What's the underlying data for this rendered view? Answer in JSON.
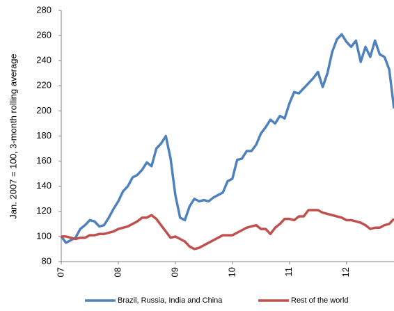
{
  "chart_data": {
    "type": "line",
    "y_label": "Jan. 2007 = 100, 3-month rolling average",
    "categories": [
      "07",
      null,
      null,
      null,
      null,
      null,
      null,
      null,
      null,
      null,
      null,
      null,
      "08",
      null,
      null,
      null,
      null,
      null,
      null,
      null,
      null,
      null,
      null,
      null,
      "09",
      null,
      null,
      null,
      null,
      null,
      null,
      null,
      null,
      null,
      null,
      null,
      "10",
      null,
      null,
      null,
      null,
      null,
      null,
      null,
      null,
      null,
      null,
      null,
      "11",
      null,
      null,
      null,
      null,
      null,
      null,
      null,
      null,
      null,
      null,
      null,
      "12",
      null,
      null,
      null,
      null,
      null,
      null,
      null,
      null,
      null,
      null
    ],
    "series": [
      {
        "name": "Brazil, Russia, India and China",
        "color": "#4f81bd",
        "values": [
          100,
          95,
          97,
          99,
          106,
          109,
          113,
          112,
          108,
          109,
          115,
          122,
          128,
          136,
          140,
          147,
          149,
          153,
          159,
          156,
          170,
          174,
          180,
          162,
          133,
          115,
          113,
          124,
          130,
          128,
          129,
          128,
          131,
          133,
          135,
          144,
          146,
          161,
          162,
          168,
          168,
          173,
          182,
          187,
          193,
          190,
          196,
          194,
          206,
          215,
          214,
          218,
          222,
          226,
          231,
          219,
          230,
          247,
          257,
          261,
          255,
          251,
          256,
          239,
          251,
          243,
          256,
          245,
          243,
          233,
          202
        ]
      },
      {
        "name": "Rest of the world",
        "color": "#c0504d",
        "values": [
          100,
          100,
          99,
          98,
          99,
          99,
          101,
          101,
          102,
          102,
          103,
          104,
          106,
          107,
          108,
          110,
          112,
          115,
          115,
          117,
          114,
          109,
          104,
          99,
          100,
          98,
          96,
          92,
          90,
          91,
          93,
          95,
          97,
          99,
          101,
          101,
          101,
          103,
          105,
          107,
          108,
          109,
          106,
          106,
          102,
          107,
          110,
          114,
          114,
          113,
          116,
          116,
          121,
          121,
          121,
          119,
          118,
          117,
          116,
          115,
          113,
          113,
          112,
          111,
          109,
          106,
          107,
          107,
          109,
          110,
          114
        ]
      }
    ],
    "ylim": [
      80,
      280
    ],
    "yticks": [
      80,
      100,
      120,
      140,
      160,
      180,
      200,
      220,
      240,
      260,
      280
    ],
    "grid": false,
    "legend": "bottom"
  }
}
